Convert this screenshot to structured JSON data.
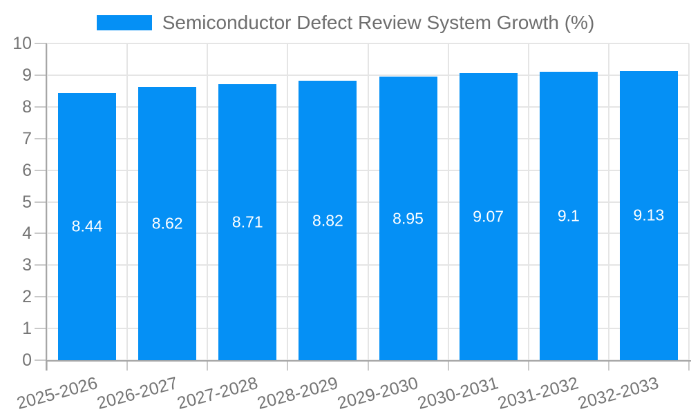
{
  "chart_data": {
    "type": "bar",
    "title": "Semiconductor Defect Review System Growth (%)",
    "categories": [
      "2025-2026",
      "2026-2027",
      "2027-2028",
      "2028-2029",
      "2029-2030",
      "2030-2031",
      "2031-2032",
      "2032-2033"
    ],
    "values": [
      8.44,
      8.62,
      8.71,
      8.82,
      8.95,
      9.07,
      9.1,
      9.13
    ],
    "value_labels": [
      "8.44",
      "8.62",
      "8.71",
      "8.82",
      "8.95",
      "9.07",
      "9.1",
      "9.13"
    ],
    "xlabel": "",
    "ylabel": "",
    "ylim": [
      0,
      10
    ],
    "ytick_labels": [
      "0",
      "1",
      "2",
      "3",
      "4",
      "5",
      "6",
      "7",
      "8",
      "9",
      "10"
    ],
    "grid": true,
    "legend_position": "top",
    "legend_entries": [
      "Semiconductor Defect Review System Growth (%)"
    ],
    "colors": {
      "bar": "#0590f5",
      "grid": "#e5e5e5",
      "axis": "#a6a6a6",
      "tick_mark": "#c9c9c9",
      "tick_label": "#757575",
      "title_text": "#6e6e6e",
      "bar_label": "#ffffff",
      "background": "#ffffff"
    }
  }
}
